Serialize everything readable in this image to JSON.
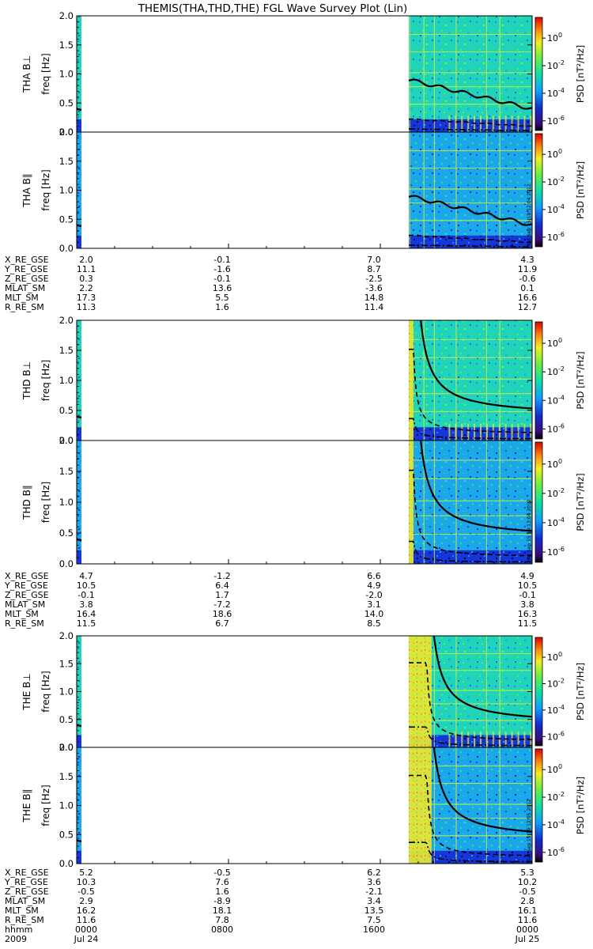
{
  "title": "THEMIS(THA,THD,THE) FGL Wave Survey Plot (Lin)",
  "colorbar": {
    "label": "PSD [nT²/Hz]",
    "tick_exponents": [
      0,
      -2,
      -4,
      -6
    ],
    "tick_base": "10"
  },
  "stamps": [
    "Sat Sep 15 19:12:04 2012",
    "Sat Sep 15 19:12:04 2012",
    "Sat Sep 15 19:12:05 2012"
  ],
  "freq_ticks": [
    "0.0",
    "0.5",
    "1.0",
    "1.5",
    "2.0"
  ],
  "panel_freq_label": "freq [Hz]",
  "probes": [
    {
      "id": "THA",
      "panels": [
        "THA B⊥",
        "THA B∥"
      ],
      "ephem": [
        {
          "name": "X_RE_GSE",
          "values": [
            "2.0",
            "-0.1",
            "7.0",
            "4.3"
          ]
        },
        {
          "name": "Y_RE_GSE",
          "values": [
            "11.1",
            "-1.6",
            "8.7",
            "11.9"
          ]
        },
        {
          "name": "Z_RE_GSE",
          "values": [
            "0.3",
            "-0.1",
            "-2.5",
            "-0.6"
          ]
        },
        {
          "name": "MLAT_SM",
          "values": [
            "2.2",
            "13.6",
            "-3.6",
            "0.1"
          ]
        },
        {
          "name": "MLT_SM",
          "values": [
            "17.3",
            "5.5",
            "14.8",
            "16.6"
          ]
        },
        {
          "name": "R_RE_SM",
          "values": [
            "11.3",
            "1.6",
            "11.4",
            "12.7"
          ]
        }
      ]
    },
    {
      "id": "THD",
      "panels": [
        "THD B⊥",
        "THD B∥"
      ],
      "ephem": [
        {
          "name": "X_RE_GSE",
          "values": [
            "4.7",
            "-1.2",
            "6.6",
            "4.9"
          ]
        },
        {
          "name": "Y_RE_GSE",
          "values": [
            "10.5",
            "6.4",
            "4.9",
            "10.5"
          ]
        },
        {
          "name": "Z_RE_GSE",
          "values": [
            "-0.1",
            "1.7",
            "-2.0",
            "-0.1"
          ]
        },
        {
          "name": "MLAT_SM",
          "values": [
            "3.8",
            "-7.2",
            "3.1",
            "3.8"
          ]
        },
        {
          "name": "MLT_SM",
          "values": [
            "16.4",
            "18.6",
            "14.0",
            "16.3"
          ]
        },
        {
          "name": "R_RE_SM",
          "values": [
            "11.5",
            "6.7",
            "8.5",
            "11.5"
          ]
        }
      ]
    },
    {
      "id": "THE",
      "panels": [
        "THE B⊥",
        "THE B∥"
      ],
      "ephem": [
        {
          "name": "X_RE_GSE",
          "values": [
            "5.2",
            "-0.5",
            "6.2",
            "5.3"
          ]
        },
        {
          "name": "Y_RE_GSE",
          "values": [
            "10.3",
            "7.6",
            "3.6",
            "10.2"
          ]
        },
        {
          "name": "Z_RE_GSE",
          "values": [
            "-0.5",
            "1.6",
            "-2.1",
            "-0.5"
          ]
        },
        {
          "name": "MLAT_SM",
          "values": [
            "2.9",
            "-8.9",
            "3.4",
            "2.8"
          ]
        },
        {
          "name": "MLT_SM",
          "values": [
            "16.2",
            "18.1",
            "13.5",
            "16.1"
          ]
        },
        {
          "name": "R_RE_SM",
          "values": [
            "11.6",
            "7.8",
            "7.5",
            "11.6"
          ]
        }
      ]
    }
  ],
  "time_axis": {
    "label": "hhmm",
    "year": "2009",
    "ticks": [
      {
        "hhmm": "0000",
        "date": "Jul 24"
      },
      {
        "hhmm": "0800",
        "date": ""
      },
      {
        "hhmm": "1600",
        "date": ""
      },
      {
        "hhmm": "0000",
        "date": "Jul 25"
      }
    ]
  },
  "chart_data": {
    "type": "heatmap",
    "title": "THEMIS(THA,THD,THE) FGL Wave Survey Plot (Lin)",
    "ylabel": "freq [Hz]",
    "ylim": [
      0,
      2.0
    ],
    "xlim_hours": [
      0,
      24
    ],
    "color_scale": "log PSD [nT²/Hz], 10^-6 to 10^1",
    "data_coverage_hours": [
      [
        0.0,
        0.25
      ],
      [
        17.5,
        24.0
      ]
    ]
  }
}
